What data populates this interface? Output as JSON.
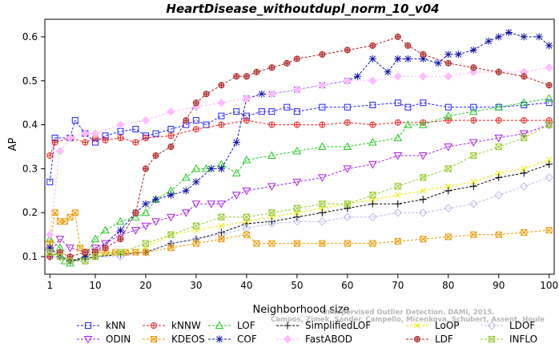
{
  "chart_data": {
    "type": "line",
    "title": "HeartDisease_withoutdupl_norm_10_v04",
    "xlabel": "Neighborhood size",
    "ylabel": "AP",
    "xlim": [
      0,
      101
    ],
    "ylim": [
      0.06,
      0.64
    ],
    "xticks": [
      1,
      10,
      20,
      30,
      40,
      50,
      60,
      70,
      80,
      90,
      100
    ],
    "yticks": [
      0.1,
      0.2,
      0.3,
      0.4,
      0.5,
      0.6
    ],
    "grid": false,
    "legend_position": "bottom",
    "watermark": [
      "Unsupervised Outlier Detection. DAMI, 2015.",
      "Campos, Zimek, Sander, Campello, Micenkova, Schubert, Assent, Houle"
    ],
    "series": [
      {
        "name": "kNN",
        "color": "#2222ff",
        "marker": "square",
        "x": [
          1,
          2,
          5,
          6,
          8,
          10,
          12,
          15,
          18,
          20,
          22,
          25,
          28,
          30,
          32,
          35,
          38,
          40,
          43,
          45,
          48,
          50,
          55,
          60,
          65,
          70,
          72,
          75,
          80,
          85,
          90,
          95,
          100
        ],
        "y": [
          0.27,
          0.37,
          0.37,
          0.41,
          0.38,
          0.36,
          0.375,
          0.385,
          0.39,
          0.375,
          0.38,
          0.39,
          0.4,
          0.41,
          0.4,
          0.42,
          0.43,
          0.42,
          0.43,
          0.43,
          0.44,
          0.43,
          0.44,
          0.44,
          0.445,
          0.45,
          0.44,
          0.45,
          0.44,
          0.44,
          0.44,
          0.445,
          0.45
        ]
      },
      {
        "name": "kNNW",
        "color": "#ee2222",
        "marker": "circle-plus",
        "x": [
          1,
          2,
          5,
          8,
          10,
          12,
          15,
          18,
          20,
          25,
          30,
          35,
          40,
          45,
          50,
          55,
          60,
          65,
          70,
          75,
          80,
          85,
          90,
          95,
          100
        ],
        "y": [
          0.33,
          0.36,
          0.37,
          0.36,
          0.37,
          0.365,
          0.37,
          0.36,
          0.37,
          0.375,
          0.39,
          0.4,
          0.41,
          0.4,
          0.4,
          0.4,
          0.405,
          0.4,
          0.405,
          0.405,
          0.41,
          0.41,
          0.41,
          0.41,
          0.41
        ]
      },
      {
        "name": "LOF",
        "color": "#22cc22",
        "marker": "triangle",
        "x": [
          1,
          3,
          4,
          5,
          8,
          10,
          12,
          15,
          18,
          20,
          22,
          25,
          28,
          30,
          32,
          35,
          38,
          40,
          45,
          50,
          55,
          60,
          65,
          70,
          72,
          75,
          80,
          85,
          90,
          95,
          100
        ],
        "y": [
          0.14,
          0.12,
          0.09,
          0.085,
          0.1,
          0.14,
          0.16,
          0.18,
          0.19,
          0.2,
          0.23,
          0.25,
          0.28,
          0.3,
          0.3,
          0.31,
          0.29,
          0.32,
          0.33,
          0.34,
          0.35,
          0.35,
          0.36,
          0.37,
          0.4,
          0.4,
          0.42,
          0.43,
          0.44,
          0.45,
          0.46
        ]
      },
      {
        "name": "SimplifiedLOF",
        "color": "#000000",
        "marker": "plus",
        "x": [
          1,
          3,
          5,
          8,
          10,
          15,
          20,
          25,
          30,
          35,
          40,
          45,
          50,
          55,
          60,
          65,
          70,
          75,
          80,
          85,
          90,
          95,
          100
        ],
        "y": [
          0.12,
          0.1,
          0.09,
          0.095,
          0.1,
          0.105,
          0.11,
          0.13,
          0.14,
          0.155,
          0.175,
          0.18,
          0.19,
          0.2,
          0.21,
          0.22,
          0.22,
          0.23,
          0.25,
          0.26,
          0.28,
          0.29,
          0.31
        ]
      },
      {
        "name": "LoOP",
        "color": "#eeee00",
        "marker": "x",
        "x": [
          1,
          3,
          5,
          8,
          10,
          15,
          20,
          25,
          30,
          35,
          40,
          45,
          50,
          55,
          60,
          65,
          70,
          75,
          80,
          85,
          90,
          95,
          100
        ],
        "y": [
          0.11,
          0.1,
          0.09,
          0.1,
          0.105,
          0.11,
          0.12,
          0.15,
          0.16,
          0.17,
          0.18,
          0.19,
          0.2,
          0.21,
          0.22,
          0.23,
          0.24,
          0.25,
          0.26,
          0.27,
          0.29,
          0.3,
          0.32
        ]
      },
      {
        "name": "LDOF",
        "color": "#bbbbee",
        "marker": "diamond",
        "x": [
          1,
          3,
          5,
          8,
          10,
          15,
          20,
          25,
          30,
          35,
          40,
          45,
          50,
          55,
          60,
          65,
          70,
          75,
          80,
          85,
          90,
          95,
          100
        ],
        "y": [
          0.1,
          0.1,
          0.09,
          0.09,
          0.1,
          0.1,
          0.11,
          0.13,
          0.14,
          0.15,
          0.165,
          0.175,
          0.18,
          0.18,
          0.19,
          0.19,
          0.2,
          0.2,
          0.21,
          0.22,
          0.24,
          0.26,
          0.28
        ]
      },
      {
        "name": "ODIN",
        "color": "#aa22ee",
        "marker": "triangle-down",
        "x": [
          1,
          3,
          5,
          8,
          10,
          12,
          15,
          18,
          20,
          22,
          25,
          28,
          30,
          33,
          35,
          38,
          40,
          45,
          50,
          55,
          60,
          65,
          70,
          75,
          80,
          85,
          90,
          95,
          100
        ],
        "y": [
          0.11,
          0.14,
          0.12,
          0.11,
          0.12,
          0.13,
          0.15,
          0.16,
          0.17,
          0.18,
          0.19,
          0.2,
          0.22,
          0.22,
          0.22,
          0.24,
          0.25,
          0.26,
          0.27,
          0.28,
          0.3,
          0.31,
          0.33,
          0.33,
          0.35,
          0.36,
          0.37,
          0.38,
          0.4
        ]
      },
      {
        "name": "KDEOS",
        "color": "#ee9900",
        "marker": "square-x",
        "x": [
          1,
          2,
          3,
          4,
          5,
          6,
          7,
          8,
          10,
          12,
          14,
          16,
          18,
          20,
          25,
          30,
          35,
          40,
          42,
          45,
          50,
          55,
          60,
          65,
          70,
          75,
          80,
          85,
          90,
          95,
          100
        ],
        "y": [
          0.13,
          0.2,
          0.18,
          0.18,
          0.19,
          0.2,
          0.12,
          0.11,
          0.11,
          0.11,
          0.11,
          0.11,
          0.11,
          0.11,
          0.12,
          0.13,
          0.14,
          0.15,
          0.13,
          0.13,
          0.13,
          0.13,
          0.13,
          0.13,
          0.135,
          0.14,
          0.145,
          0.15,
          0.15,
          0.155,
          0.16
        ]
      },
      {
        "name": "COF",
        "color": "#1111aa",
        "marker": "star",
        "x": [
          1,
          3,
          5,
          8,
          10,
          15,
          18,
          20,
          22,
          25,
          28,
          30,
          33,
          35,
          38,
          40,
          43,
          45,
          50,
          55,
          60,
          62,
          65,
          68,
          70,
          72,
          75,
          78,
          80,
          82,
          85,
          88,
          90,
          92,
          95,
          98,
          100
        ],
        "y": [
          0.12,
          0.1,
          0.09,
          0.1,
          0.11,
          0.16,
          0.2,
          0.22,
          0.23,
          0.24,
          0.25,
          0.27,
          0.3,
          0.3,
          0.36,
          0.46,
          0.47,
          0.47,
          0.48,
          0.49,
          0.5,
          0.51,
          0.55,
          0.52,
          0.55,
          0.55,
          0.55,
          0.54,
          0.56,
          0.56,
          0.57,
          0.59,
          0.6,
          0.61,
          0.6,
          0.6,
          0.58
        ]
      },
      {
        "name": "FastABOD",
        "color": "#ffbbff",
        "marker": "diamond-filled",
        "x": [
          1,
          3,
          5,
          8,
          10,
          15,
          20,
          25,
          30,
          35,
          40,
          45,
          50,
          55,
          60,
          65,
          70,
          75,
          80,
          85,
          90,
          95,
          100
        ],
        "y": [
          0.15,
          0.34,
          0.37,
          0.38,
          0.38,
          0.4,
          0.41,
          0.43,
          0.44,
          0.45,
          0.46,
          0.47,
          0.48,
          0.49,
          0.5,
          0.5,
          0.51,
          0.51,
          0.51,
          0.52,
          0.52,
          0.52,
          0.53
        ]
      },
      {
        "name": "LDF",
        "color": "#aa2222",
        "marker": "circle-plus-filled",
        "x": [
          1,
          3,
          5,
          8,
          10,
          12,
          15,
          18,
          20,
          22,
          25,
          28,
          30,
          32,
          35,
          38,
          40,
          42,
          45,
          48,
          50,
          55,
          60,
          65,
          70,
          72,
          75,
          80,
          85,
          90,
          95,
          100
        ],
        "y": [
          0.1,
          0.11,
          0.1,
          0.11,
          0.11,
          0.12,
          0.14,
          0.2,
          0.3,
          0.33,
          0.35,
          0.41,
          0.45,
          0.47,
          0.49,
          0.51,
          0.51,
          0.52,
          0.53,
          0.54,
          0.55,
          0.56,
          0.57,
          0.58,
          0.6,
          0.58,
          0.56,
          0.54,
          0.53,
          0.52,
          0.51,
          0.49
        ]
      },
      {
        "name": "INFLO",
        "color": "#99cc33",
        "marker": "hourglass",
        "x": [
          1,
          3,
          5,
          8,
          10,
          15,
          20,
          25,
          30,
          35,
          40,
          45,
          50,
          55,
          60,
          65,
          70,
          75,
          80,
          85,
          90,
          95,
          100
        ],
        "y": [
          0.11,
          0.1,
          0.09,
          0.09,
          0.1,
          0.11,
          0.13,
          0.15,
          0.17,
          0.19,
          0.19,
          0.2,
          0.21,
          0.22,
          0.22,
          0.24,
          0.26,
          0.28,
          0.3,
          0.33,
          0.35,
          0.37,
          0.4
        ]
      }
    ],
    "legend_order": [
      "kNN",
      "kNNW",
      "LOF",
      "SimplifiedLOF",
      "LoOP",
      "LDOF",
      "ODIN",
      "KDEOS",
      "COF",
      "FastABOD",
      "LDF",
      "INFLO"
    ]
  }
}
